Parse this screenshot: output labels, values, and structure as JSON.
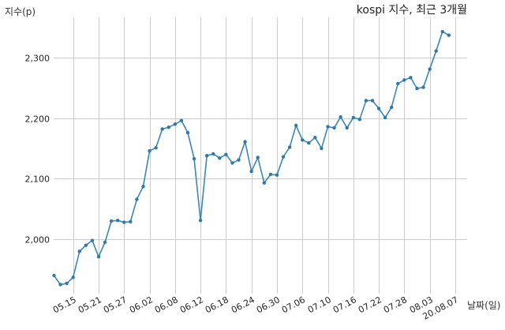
{
  "chart_data": {
    "type": "line",
    "title": "kospi 지수, 최근 3개월",
    "xlabel": "날짜(일)",
    "ylabel": "지수(p)",
    "ylim": [
      1910,
      2360
    ],
    "yticks": [
      2000,
      2100,
      2200,
      2300
    ],
    "ytick_labels": [
      "2,000",
      "2,100",
      "2,200",
      "2,300"
    ],
    "grid": true,
    "x_tick_labels": [
      "05.15",
      "05.21",
      "05.27",
      "06.02",
      "06.08",
      "06.12",
      "06.18",
      "06.24",
      "06.30",
      "07.06",
      "07.10",
      "07.16",
      "07.22",
      "07.28",
      "08.03",
      "20.08.07"
    ],
    "x_tick_index": [
      3,
      7,
      11,
      15,
      19,
      23,
      27,
      31,
      35,
      39,
      43,
      47,
      51,
      55,
      59,
      63
    ],
    "series": [
      {
        "values": [
          1940,
          1925,
          1927,
          1937,
          1980,
          1990,
          1998,
          1971,
          1995,
          2030,
          2031,
          2028,
          2029,
          2066,
          2087,
          2146,
          2151,
          2182,
          2185,
          2190,
          2196,
          2176,
          2133,
          2031,
          2138,
          2141,
          2134,
          2140,
          2126,
          2131,
          2161,
          2112,
          2135,
          2093,
          2107,
          2106,
          2136,
          2152,
          2188,
          2164,
          2159,
          2168,
          2150,
          2186,
          2184,
          2202,
          2184,
          2201,
          2198,
          2229,
          2229,
          2216,
          2201,
          2218,
          2257,
          2263,
          2267,
          2249,
          2251,
          2281,
          2311,
          2343,
          2337
        ]
      }
    ]
  }
}
